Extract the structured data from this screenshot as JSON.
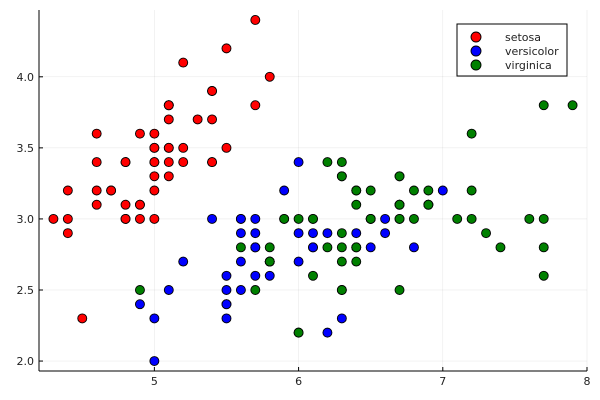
{
  "chart_data": {
    "type": "scatter",
    "title": "",
    "xlabel": "",
    "ylabel": "",
    "xlim": [
      4.2,
      8.0
    ],
    "ylim": [
      1.93,
      4.47
    ],
    "xticks": [
      "5",
      "6",
      "7",
      "8"
    ],
    "xtick_values": [
      5,
      6,
      7,
      8
    ],
    "yticks": [
      "2.0",
      "2.5",
      "3.0",
      "3.5",
      "4.0"
    ],
    "ytick_values": [
      2.0,
      2.5,
      3.0,
      3.5,
      4.0
    ],
    "grid": true,
    "legend_position": "top-right",
    "series": [
      {
        "name": "setosa",
        "color": "#ff0000",
        "x": [
          5.1,
          4.9,
          4.7,
          4.6,
          5.0,
          5.4,
          4.6,
          5.0,
          4.4,
          4.9,
          5.4,
          4.8,
          4.8,
          4.3,
          5.8,
          5.7,
          5.4,
          5.1,
          5.7,
          5.1,
          5.4,
          5.1,
          4.6,
          5.1,
          4.8,
          5.0,
          5.0,
          5.2,
          5.2,
          4.7,
          4.8,
          5.4,
          5.2,
          5.5,
          4.9,
          5.0,
          5.5,
          4.9,
          4.4,
          5.1,
          5.0,
          4.5,
          4.4,
          5.0,
          5.1,
          4.8,
          5.1,
          4.6,
          5.3,
          5.0
        ],
        "y": [
          3.5,
          3.0,
          3.2,
          3.1,
          3.6,
          3.9,
          3.4,
          3.4,
          2.9,
          3.1,
          3.7,
          3.4,
          3.0,
          3.0,
          4.0,
          4.4,
          3.9,
          3.5,
          3.8,
          3.8,
          3.4,
          3.7,
          3.6,
          3.3,
          3.4,
          3.0,
          3.4,
          3.5,
          3.4,
          3.2,
          3.1,
          3.4,
          4.1,
          4.2,
          3.1,
          3.2,
          3.5,
          3.6,
          3.0,
          3.4,
          3.5,
          2.3,
          3.2,
          3.5,
          3.8,
          3.0,
          3.8,
          3.2,
          3.7,
          3.3
        ]
      },
      {
        "name": "versicolor",
        "color": "#0000ff",
        "x": [
          7.0,
          6.4,
          6.9,
          5.5,
          6.5,
          5.7,
          6.3,
          4.9,
          6.6,
          5.2,
          5.0,
          5.9,
          6.0,
          6.1,
          5.6,
          6.7,
          5.6,
          5.8,
          6.2,
          5.6,
          5.9,
          6.1,
          6.3,
          6.1,
          6.4,
          6.6,
          6.8,
          6.7,
          6.0,
          5.7,
          5.5,
          5.5,
          5.8,
          6.0,
          5.4,
          6.0,
          6.7,
          6.3,
          5.6,
          5.5,
          5.5,
          6.1,
          5.8,
          5.0,
          5.6,
          5.7,
          5.7,
          6.2,
          5.1,
          5.7
        ],
        "y": [
          3.2,
          3.2,
          3.1,
          2.3,
          2.8,
          2.8,
          3.3,
          2.4,
          2.9,
          2.7,
          2.0,
          3.0,
          2.2,
          2.9,
          2.9,
          3.1,
          3.0,
          2.7,
          2.2,
          2.5,
          3.2,
          2.8,
          2.5,
          2.8,
          2.9,
          3.0,
          2.8,
          3.0,
          2.9,
          2.6,
          2.4,
          2.4,
          2.7,
          2.7,
          3.0,
          3.4,
          3.1,
          2.3,
          3.0,
          2.5,
          2.6,
          3.0,
          2.6,
          2.3,
          2.7,
          3.0,
          2.9,
          2.9,
          2.5,
          2.8
        ]
      },
      {
        "name": "virginica",
        "color": "#008000",
        "x": [
          6.3,
          5.8,
          7.1,
          6.3,
          6.5,
          7.6,
          4.9,
          7.3,
          6.7,
          7.2,
          6.5,
          6.4,
          6.8,
          5.7,
          5.8,
          6.4,
          6.5,
          7.7,
          7.7,
          6.0,
          6.9,
          5.6,
          7.7,
          6.3,
          6.7,
          7.2,
          6.2,
          6.1,
          6.4,
          7.2,
          7.4,
          7.9,
          6.4,
          6.3,
          6.1,
          7.7,
          6.3,
          6.4,
          6.0,
          6.9,
          6.7,
          6.9,
          5.8,
          6.8,
          6.7,
          6.7,
          6.3,
          6.5,
          6.2,
          5.9
        ],
        "y": [
          3.3,
          2.7,
          3.0,
          2.9,
          3.0,
          3.0,
          2.5,
          2.9,
          2.5,
          3.6,
          3.2,
          2.7,
          3.0,
          2.5,
          2.8,
          3.2,
          3.0,
          3.8,
          2.6,
          2.2,
          3.2,
          2.8,
          2.8,
          2.7,
          3.3,
          3.2,
          2.8,
          3.0,
          2.8,
          3.0,
          2.8,
          3.8,
          2.8,
          2.8,
          2.6,
          3.0,
          3.4,
          3.1,
          3.0,
          3.1,
          3.1,
          3.1,
          2.7,
          3.2,
          3.3,
          3.0,
          2.5,
          3.0,
          3.4,
          3.0
        ]
      }
    ]
  }
}
